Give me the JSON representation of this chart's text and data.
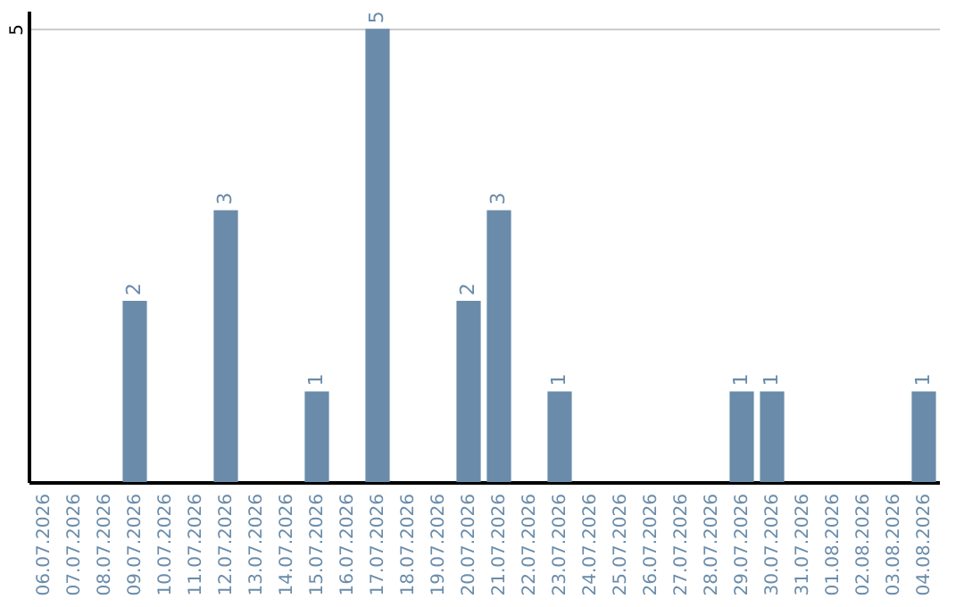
{
  "chart_data": {
    "type": "bar",
    "categories": [
      "06.07.2026",
      "07.07.2026",
      "08.07.2026",
      "09.07.2026",
      "10.07.2026",
      "11.07.2026",
      "12.07.2026",
      "13.07.2026",
      "14.07.2026",
      "15.07.2026",
      "16.07.2026",
      "17.07.2026",
      "18.07.2026",
      "19.07.2026",
      "20.07.2026",
      "21.07.2026",
      "22.07.2026",
      "23.07.2026",
      "24.07.2026",
      "25.07.2026",
      "26.07.2026",
      "27.07.2026",
      "28.07.2026",
      "29.07.2026",
      "30.07.2026",
      "31.07.2026",
      "01.08.2026",
      "02.08.2026",
      "03.08.2026",
      "04.08.2026"
    ],
    "values": [
      0,
      0,
      0,
      2,
      0,
      0,
      3,
      0,
      0,
      1,
      0,
      5,
      0,
      0,
      2,
      3,
      0,
      1,
      0,
      0,
      0,
      0,
      0,
      1,
      1,
      0,
      0,
      0,
      0,
      1
    ],
    "value_labels": [
      null,
      null,
      null,
      "2",
      null,
      null,
      "3",
      null,
      null,
      "1",
      null,
      "5",
      null,
      null,
      "2",
      "3",
      null,
      "1",
      null,
      null,
      null,
      null,
      null,
      "1",
      "1",
      null,
      null,
      null,
      null,
      "1"
    ],
    "color": "#6a8caa",
    "ylim": [
      0,
      5.2
    ],
    "yticks": [
      5
    ],
    "grid": "y"
  }
}
